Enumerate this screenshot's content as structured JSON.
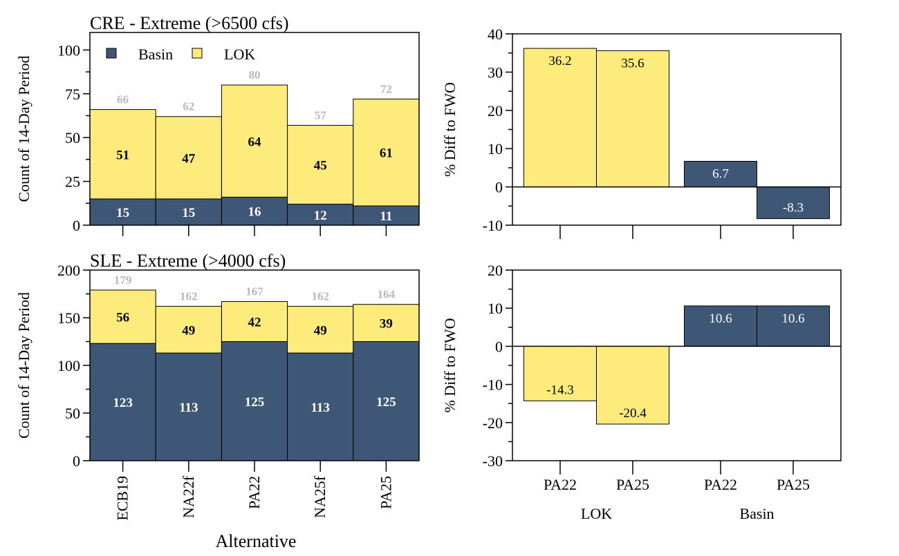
{
  "colors": {
    "basin": "#3e5777",
    "lok": "#fdeb7c",
    "total_label": "#b8b8b8"
  },
  "legend": {
    "basin": "Basin",
    "lok": "LOK"
  },
  "xaxis_title": "Alternative",
  "chart_data": [
    {
      "type": "bar",
      "stacked": true,
      "title": "CRE - Extreme (>6500 cfs)",
      "ylabel": "Count of 14-Day Period",
      "ylim": [
        0,
        110
      ],
      "yticks": [
        0,
        25,
        50,
        75,
        100
      ],
      "categories": [
        "ECB19",
        "NA22f",
        "PA22",
        "NA25f",
        "PA25"
      ],
      "series": [
        {
          "name": "Basin",
          "values": [
            15,
            15,
            16,
            12,
            11
          ]
        },
        {
          "name": "LOK",
          "values": [
            51,
            47,
            64,
            45,
            61
          ]
        }
      ],
      "totals": [
        66,
        62,
        80,
        57,
        72
      ],
      "legend_position": "top-left"
    },
    {
      "type": "bar",
      "title": "",
      "ylabel": "% Diff to FWO",
      "ylim": [
        -10,
        40
      ],
      "yticks": [
        -10,
        0,
        10,
        20,
        30,
        40
      ],
      "bars": [
        {
          "group": "LOK",
          "label": "PA22",
          "value": 36.2
        },
        {
          "group": "LOK",
          "label": "PA25",
          "value": 35.6
        },
        {
          "group": "Basin",
          "label": "PA22",
          "value": 6.7
        },
        {
          "group": "Basin",
          "label": "PA25",
          "value": -8.3
        }
      ]
    },
    {
      "type": "bar",
      "stacked": true,
      "title": "SLE - Extreme (>4000 cfs)",
      "ylabel": "Count of 14-Day Period",
      "ylim": [
        0,
        200
      ],
      "yticks": [
        0,
        50,
        100,
        150,
        200
      ],
      "categories": [
        "ECB19",
        "NA22f",
        "PA22",
        "NA25f",
        "PA25"
      ],
      "series": [
        {
          "name": "Basin",
          "values": [
            123,
            113,
            125,
            113,
            125
          ]
        },
        {
          "name": "LOK",
          "values": [
            56,
            49,
            42,
            49,
            39
          ]
        }
      ],
      "totals": [
        179,
        162,
        167,
        162,
        164
      ]
    },
    {
      "type": "bar",
      "title": "",
      "ylabel": "% Diff to FWO",
      "ylim": [
        -30,
        20
      ],
      "yticks": [
        -30,
        -20,
        -10,
        0,
        10,
        20
      ],
      "bars": [
        {
          "group": "LOK",
          "label": "PA22",
          "value": -14.3
        },
        {
          "group": "LOK",
          "label": "PA25",
          "value": -20.4
        },
        {
          "group": "Basin",
          "label": "PA22",
          "value": 10.6
        },
        {
          "group": "Basin",
          "label": "PA25",
          "value": 10.6
        }
      ]
    }
  ]
}
